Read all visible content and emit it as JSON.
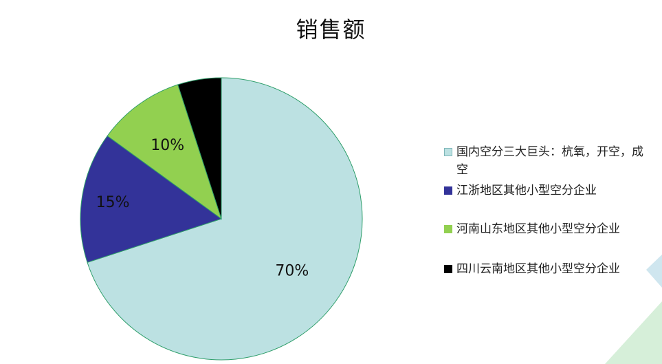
{
  "chart_data": {
    "type": "pie",
    "title": "销售额",
    "categories": [
      "国内空分三大巨头：杭氧，开空，成空",
      "江浙地区其他小型空分企业",
      "河南山东地区其他小型空分企业",
      "四川云南地区其他小型空分企业"
    ],
    "values": [
      70,
      15,
      10,
      5
    ],
    "data_labels": [
      "70%",
      "15%",
      "10%",
      ""
    ],
    "colors": [
      "#bce1e2",
      "#333399",
      "#92d050",
      "#000000"
    ],
    "legend_position": "right"
  }
}
